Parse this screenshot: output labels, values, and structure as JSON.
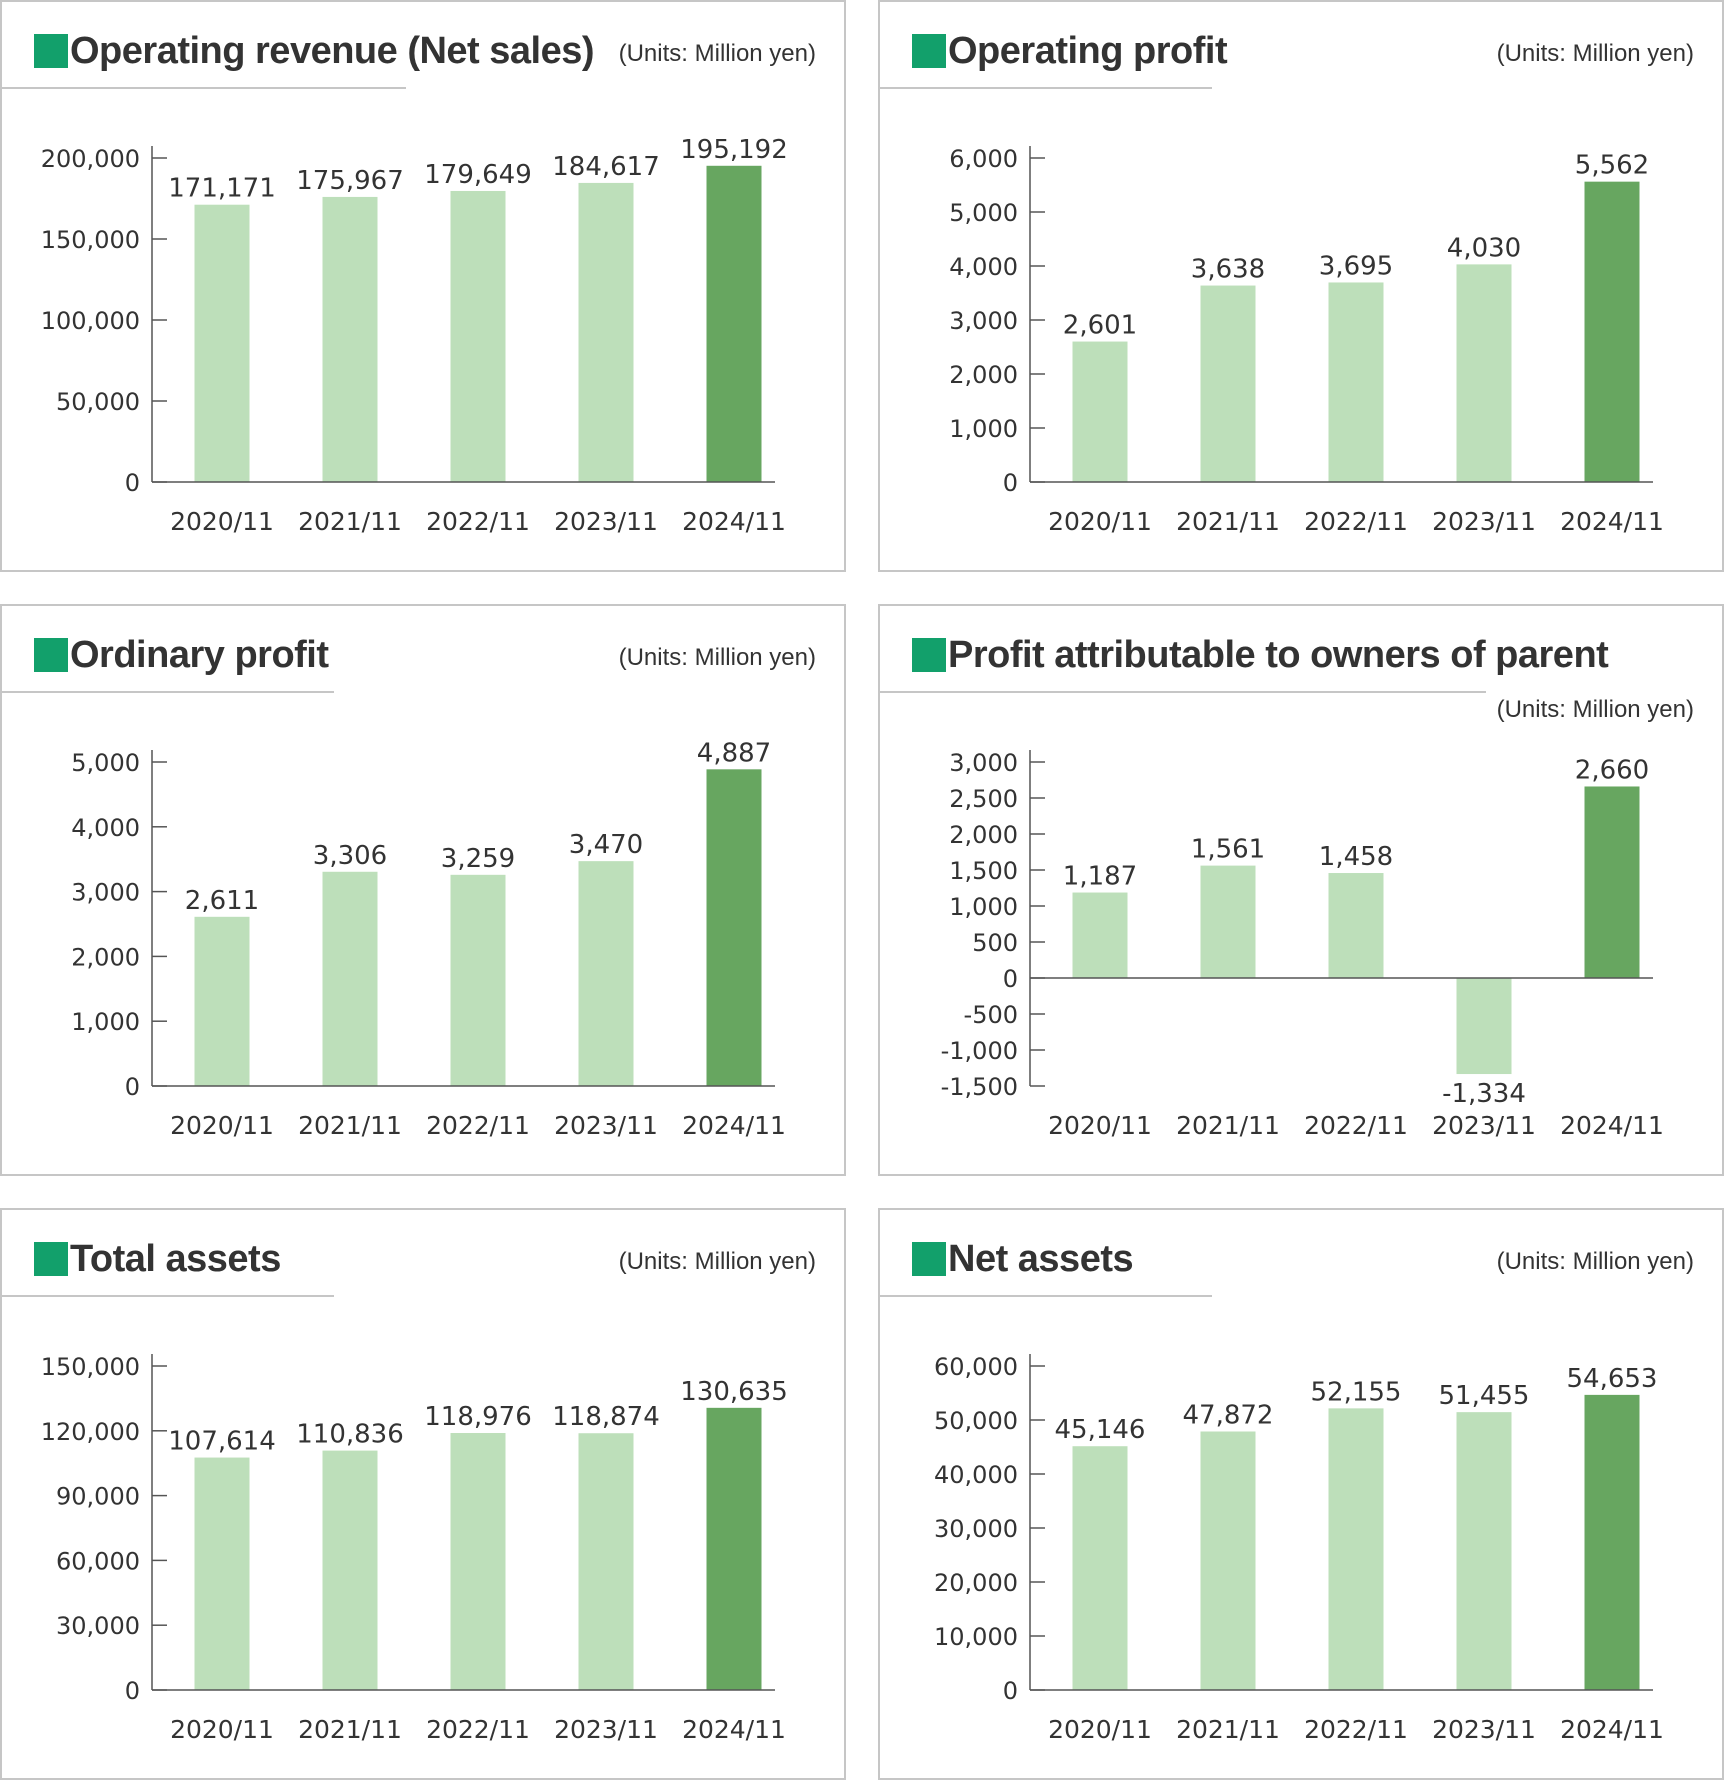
{
  "colors": {
    "bar": "#bddfba",
    "highlight": "#67a660",
    "axis": "#555555",
    "title_square": "#12a06b",
    "border": "#c6c6c6"
  },
  "panels": [
    {
      "title": "Operating revenue (Net sales)",
      "units": "(Units: Million yen)"
    },
    {
      "title": "Operating profit",
      "units": "(Units: Million yen)"
    },
    {
      "title": "Ordinary profit",
      "units": "(Units: Million yen)"
    },
    {
      "title": "Profit attributable to owners of parent",
      "units": "(Units: Million yen)"
    },
    {
      "title": "Total assets",
      "units": "(Units: Million yen)"
    },
    {
      "title": "Net assets",
      "units": "(Units: Million yen)"
    }
  ],
  "chart_data": [
    {
      "type": "bar",
      "title": "Operating revenue (Net sales)",
      "units": "(Units: Million yen)",
      "categories": [
        "2020/11",
        "2021/11",
        "2022/11",
        "2023/11",
        "2024/11"
      ],
      "values": [
        171171,
        175967,
        179649,
        184617,
        195192
      ],
      "value_labels": [
        "171,171",
        "175,967",
        "179,649",
        "184,617",
        "195,192"
      ],
      "ylim": [
        0,
        200000
      ],
      "yticks": [
        0,
        50000,
        100000,
        150000,
        200000
      ],
      "ytick_labels": [
        "0",
        "50,000",
        "100,000",
        "150,000",
        "200,000"
      ],
      "highlight_index": 4
    },
    {
      "type": "bar",
      "title": "Operating profit",
      "units": "(Units: Million yen)",
      "categories": [
        "2020/11",
        "2021/11",
        "2022/11",
        "2023/11",
        "2024/11"
      ],
      "values": [
        2601,
        3638,
        3695,
        4030,
        5562
      ],
      "value_labels": [
        "2,601",
        "3,638",
        "3,695",
        "4,030",
        "5,562"
      ],
      "ylim": [
        0,
        6000
      ],
      "yticks": [
        0,
        1000,
        2000,
        3000,
        4000,
        5000,
        6000
      ],
      "ytick_labels": [
        "0",
        "1,000",
        "2,000",
        "3,000",
        "4,000",
        "5,000",
        "6,000"
      ],
      "highlight_index": 4
    },
    {
      "type": "bar",
      "title": "Ordinary profit",
      "units": "(Units: Million yen)",
      "categories": [
        "2020/11",
        "2021/11",
        "2022/11",
        "2023/11",
        "2024/11"
      ],
      "values": [
        2611,
        3306,
        3259,
        3470,
        4887
      ],
      "value_labels": [
        "2,611",
        "3,306",
        "3,259",
        "3,470",
        "4,887"
      ],
      "ylim": [
        0,
        5000
      ],
      "yticks": [
        0,
        1000,
        2000,
        3000,
        4000,
        5000
      ],
      "ytick_labels": [
        "0",
        "1,000",
        "2,000",
        "3,000",
        "4,000",
        "5,000"
      ],
      "highlight_index": 4
    },
    {
      "type": "bar",
      "title": "Profit attributable to owners of parent",
      "units": "(Units: Million yen)",
      "categories": [
        "2020/11",
        "2021/11",
        "2022/11",
        "2023/11",
        "2024/11"
      ],
      "values": [
        1187,
        1561,
        1458,
        -1334,
        2660
      ],
      "value_labels": [
        "1,187",
        "1,561",
        "1,458",
        "-1,334",
        "2,660"
      ],
      "ylim": [
        -1500,
        3000
      ],
      "yticks": [
        -1500,
        -1000,
        -500,
        0,
        500,
        1000,
        1500,
        2000,
        2500,
        3000
      ],
      "ytick_labels": [
        "-1,500",
        "-1,000",
        "-500",
        "0",
        "500",
        "1,000",
        "1,500",
        "2,000",
        "2,500",
        "3,000"
      ],
      "highlight_index": 4
    },
    {
      "type": "bar",
      "title": "Total assets",
      "units": "(Units: Million yen)",
      "categories": [
        "2020/11",
        "2021/11",
        "2022/11",
        "2023/11",
        "2024/11"
      ],
      "values": [
        107614,
        110836,
        118976,
        118874,
        130635
      ],
      "value_labels": [
        "107,614",
        "110,836",
        "118,976",
        "118,874",
        "130,635"
      ],
      "ylim": [
        0,
        150000
      ],
      "yticks": [
        0,
        30000,
        60000,
        90000,
        120000,
        150000
      ],
      "ytick_labels": [
        "0",
        "30,000",
        "60,000",
        "90,000",
        "120,000",
        "150,000"
      ],
      "highlight_index": 4
    },
    {
      "type": "bar",
      "title": "Net assets",
      "units": "(Units: Million yen)",
      "categories": [
        "2020/11",
        "2021/11",
        "2022/11",
        "2023/11",
        "2024/11"
      ],
      "values": [
        45146,
        47872,
        52155,
        51455,
        54653
      ],
      "value_labels": [
        "45,146",
        "47,872",
        "52,155",
        "51,455",
        "54,653"
      ],
      "ylim": [
        0,
        60000
      ],
      "yticks": [
        0,
        10000,
        20000,
        30000,
        40000,
        50000,
        60000
      ],
      "ytick_labels": [
        "0",
        "10,000",
        "20,000",
        "30,000",
        "40,000",
        "50,000",
        "60,000"
      ],
      "highlight_index": 4
    }
  ]
}
